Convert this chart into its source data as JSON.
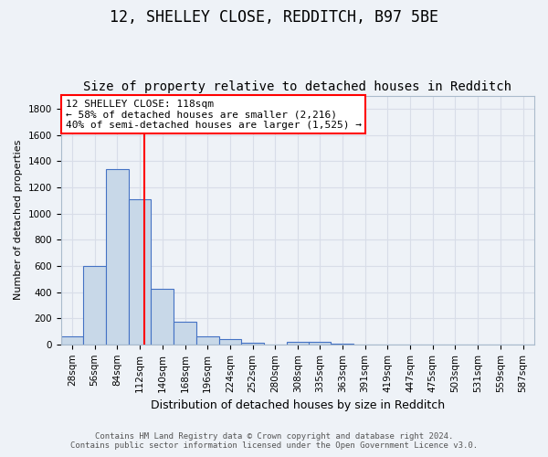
{
  "title1": "12, SHELLEY CLOSE, REDDITCH, B97 5BE",
  "title2": "Size of property relative to detached houses in Redditch",
  "xlabel": "Distribution of detached houses by size in Redditch",
  "ylabel": "Number of detached properties",
  "bin_left_edges": [
    14,
    42,
    70,
    98,
    126,
    154,
    182,
    210,
    238,
    266,
    294,
    321,
    349,
    377,
    405,
    433,
    461,
    489,
    517,
    545,
    573
  ],
  "bin_width": 28,
  "bin_labels": [
    "28sqm",
    "56sqm",
    "84sqm",
    "112sqm",
    "140sqm",
    "168sqm",
    "196sqm",
    "224sqm",
    "252sqm",
    "280sqm",
    "308sqm",
    "335sqm",
    "363sqm",
    "391sqm",
    "419sqm",
    "447sqm",
    "475sqm",
    "503sqm",
    "531sqm",
    "559sqm",
    "587sqm"
  ],
  "bar_heights": [
    60,
    600,
    1340,
    1110,
    425,
    175,
    60,
    40,
    15,
    0,
    20,
    20,
    5,
    0,
    0,
    0,
    0,
    0,
    0,
    0,
    0
  ],
  "bar_color": "#c8d8e8",
  "bar_edge_color": "#4472c4",
  "property_line_x": 118,
  "property_line_color": "red",
  "ylim_max": 1900,
  "yticks": [
    0,
    200,
    400,
    600,
    800,
    1000,
    1200,
    1400,
    1600,
    1800
  ],
  "annotation_line1": "12 SHELLEY CLOSE: 118sqm",
  "annotation_line2": "← 58% of detached houses are smaller (2,216)",
  "annotation_line3": "40% of semi-detached houses are larger (1,525) →",
  "annotation_box_color": "white",
  "annotation_box_edge_color": "red",
  "footer1": "Contains HM Land Registry data © Crown copyright and database right 2024.",
  "footer2": "Contains public sector information licensed under the Open Government Licence v3.0.",
  "bg_color": "#eef2f7",
  "grid_color": "#d8dde8",
  "title1_fontsize": 12,
  "title2_fontsize": 10,
  "xlabel_fontsize": 9,
  "ylabel_fontsize": 8,
  "tick_fontsize": 7.5,
  "annotation_fontsize": 8,
  "footer_fontsize": 6.5
}
